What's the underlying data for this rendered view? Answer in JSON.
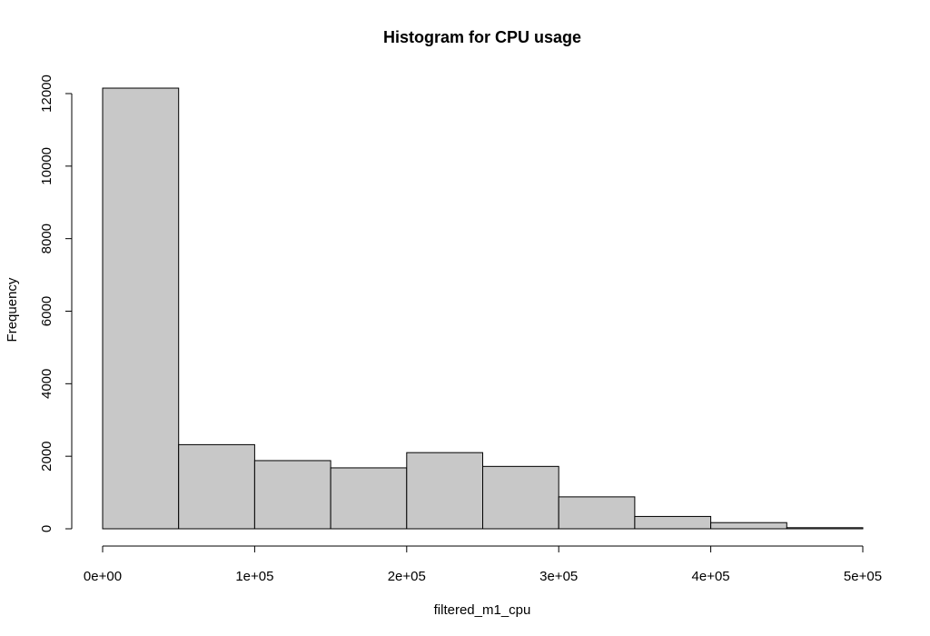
{
  "chart_data": {
    "type": "bar",
    "title": "Histogram for CPU usage",
    "xlabel": "filtered_m1_cpu",
    "ylabel": "Frequency",
    "bin_edges": [
      0,
      50000,
      100000,
      150000,
      200000,
      250000,
      300000,
      350000,
      400000,
      450000,
      500000
    ],
    "values": [
      12150,
      2320,
      1880,
      1680,
      2100,
      1720,
      880,
      340,
      170,
      30
    ],
    "xlim": [
      0,
      500000
    ],
    "ylim": [
      0,
      12000
    ],
    "x_ticks": [
      0,
      100000,
      200000,
      300000,
      400000,
      500000
    ],
    "x_tick_labels": [
      "0e+00",
      "1e+05",
      "2e+05",
      "3e+05",
      "4e+05",
      "5e+05"
    ],
    "y_ticks": [
      0,
      2000,
      4000,
      6000,
      8000,
      10000,
      12000
    ],
    "y_tick_labels": [
      "0",
      "2000",
      "4000",
      "6000",
      "8000",
      "10000",
      "12000"
    ],
    "bar_color": "#c8c8c8",
    "grid": false,
    "legend": "none"
  }
}
